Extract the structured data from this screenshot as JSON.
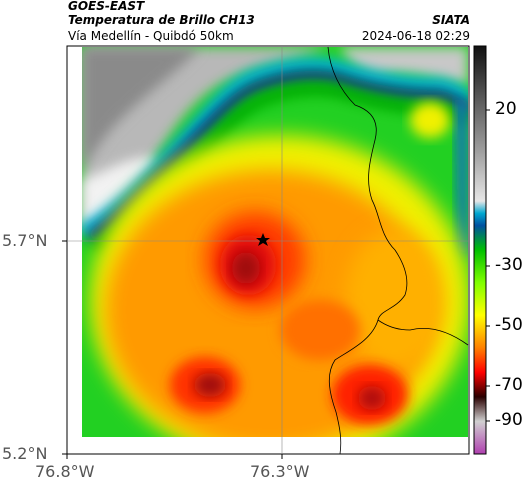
{
  "header": {
    "source": "GOES-EAST",
    "product": "Temperatura de Brillo CH13",
    "region": "Vía Medellín - Quibdó 50km",
    "brand": "SIATA",
    "timestamp": "2024-06-18 02:29"
  },
  "axes": {
    "lat_labels": [
      "5.7°N",
      "5.2°N"
    ],
    "lon_labels": [
      "76.8°W",
      "76.3°W"
    ]
  },
  "colorbar": {
    "tick_labels": [
      "20",
      "-30",
      "-50",
      "-70",
      "-90"
    ]
  },
  "marker": {
    "icon": "star-icon"
  },
  "colors": {
    "cold_top": "#8b1a1a",
    "warm_clear": "#ffffff",
    "mid": "#ff8c00",
    "cirrus_edge": "#00c0e0"
  }
}
